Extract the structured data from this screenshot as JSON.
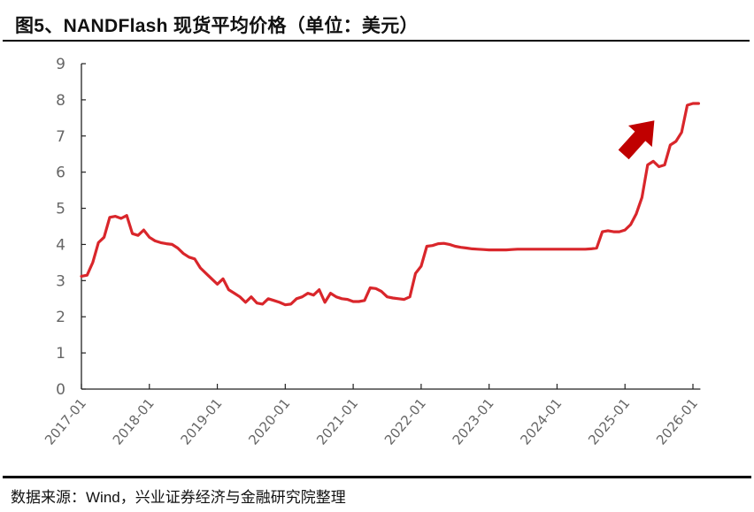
{
  "header": {
    "title": "图5、NANDFlash 现货平均价格（单位：美元）"
  },
  "footer": {
    "source": "数据来源：Wind，兴业证券经济与金融研究院整理"
  },
  "colors": {
    "line": "#d9262b",
    "arrow": "#c00000",
    "axis": "#222222",
    "tick_label": "#666666"
  },
  "chart_data": {
    "type": "line",
    "title": "图5、NANDFlash 现货平均价格（单位：美元）",
    "xlabel": "",
    "ylabel": "",
    "ylim": [
      0,
      9
    ],
    "yticks": [
      0,
      1,
      2,
      3,
      4,
      5,
      6,
      7,
      8,
      9
    ],
    "xticks": [
      "2017-01",
      "2018-01",
      "2019-01",
      "2020-01",
      "2021-01",
      "2022-01",
      "2023-01",
      "2024-01",
      "2025-01",
      "2026-01"
    ],
    "grid": false,
    "legend": null,
    "annotations": [
      "red upward arrow near 2025-09 indicating rising price"
    ],
    "series": [
      {
        "name": "NANDFlash 现货平均价格",
        "x_start": "2017-01",
        "frequency": "monthly",
        "x": [
          "2017-01",
          "2017-02",
          "2017-03",
          "2017-04",
          "2017-05",
          "2017-06",
          "2017-07",
          "2017-08",
          "2017-09",
          "2017-10",
          "2017-11",
          "2017-12",
          "2018-01",
          "2018-02",
          "2018-03",
          "2018-04",
          "2018-05",
          "2018-06",
          "2018-07",
          "2018-08",
          "2018-09",
          "2018-10",
          "2018-11",
          "2018-12",
          "2019-01",
          "2019-02",
          "2019-03",
          "2019-04",
          "2019-05",
          "2019-06",
          "2019-07",
          "2019-08",
          "2019-09",
          "2019-10",
          "2019-11",
          "2019-12",
          "2020-01",
          "2020-02",
          "2020-03",
          "2020-04",
          "2020-05",
          "2020-06",
          "2020-07",
          "2020-08",
          "2020-09",
          "2020-10",
          "2020-11",
          "2020-12",
          "2021-01",
          "2021-02",
          "2021-03",
          "2021-04",
          "2021-05",
          "2021-06",
          "2021-07",
          "2021-08",
          "2021-09",
          "2021-10",
          "2021-11",
          "2021-12",
          "2022-01",
          "2022-02",
          "2022-03",
          "2022-04",
          "2022-05",
          "2022-06",
          "2022-07",
          "2022-08",
          "2022-09",
          "2022-10",
          "2022-11",
          "2022-12",
          "2023-01",
          "2023-02",
          "2023-03",
          "2023-04",
          "2023-05",
          "2023-06",
          "2023-07",
          "2023-08",
          "2023-09",
          "2023-10",
          "2023-11",
          "2023-12",
          "2024-01",
          "2024-02",
          "2024-03",
          "2024-04",
          "2024-05",
          "2024-06",
          "2024-07",
          "2024-08",
          "2024-09",
          "2024-10",
          "2024-11",
          "2024-12",
          "2025-01",
          "2025-02",
          "2025-03",
          "2025-04",
          "2025-05",
          "2025-06",
          "2025-07",
          "2025-08",
          "2025-09",
          "2025-10",
          "2025-11",
          "2025-12",
          "2026-01",
          "2026-02"
        ],
        "values": [
          3.12,
          3.15,
          3.5,
          4.05,
          4.2,
          4.75,
          4.78,
          4.72,
          4.8,
          4.3,
          4.25,
          4.4,
          4.2,
          4.1,
          4.05,
          4.02,
          4.0,
          3.9,
          3.75,
          3.65,
          3.6,
          3.35,
          3.2,
          3.05,
          2.9,
          3.05,
          2.75,
          2.65,
          2.55,
          2.4,
          2.55,
          2.38,
          2.35,
          2.5,
          2.45,
          2.4,
          2.33,
          2.35,
          2.5,
          2.55,
          2.65,
          2.6,
          2.75,
          2.4,
          2.65,
          2.55,
          2.5,
          2.48,
          2.42,
          2.42,
          2.45,
          2.8,
          2.78,
          2.7,
          2.55,
          2.52,
          2.5,
          2.48,
          2.55,
          3.2,
          3.4,
          3.95,
          3.97,
          4.02,
          4.03,
          4.0,
          3.95,
          3.92,
          3.9,
          3.88,
          3.87,
          3.86,
          3.85,
          3.85,
          3.85,
          3.85,
          3.86,
          3.87,
          3.87,
          3.87,
          3.87,
          3.87,
          3.87,
          3.87,
          3.87,
          3.87,
          3.87,
          3.87,
          3.87,
          3.87,
          3.88,
          3.9,
          4.35,
          4.38,
          4.35,
          4.35,
          4.4,
          4.55,
          4.85,
          5.3,
          6.2,
          6.3,
          6.15,
          6.2,
          6.75,
          6.85,
          7.1,
          7.85,
          7.9,
          7.9
        ]
      }
    ]
  }
}
